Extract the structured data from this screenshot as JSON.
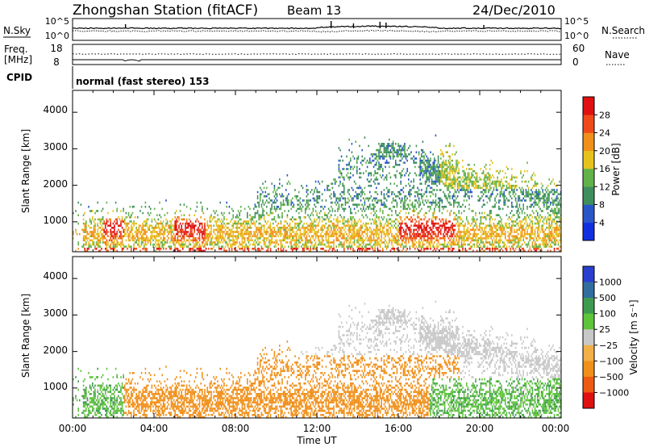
{
  "header": {
    "title": "Zhongshan Station (fitACF)",
    "beam": "Beam 13",
    "date": "24/Dec/2010"
  },
  "strips": {
    "nsky_label": "N.Sky",
    "nsearch_label": "N.Search",
    "count_ticks": [
      "10^5",
      "10^0"
    ],
    "freq_label_line1": "Freq.",
    "freq_label_line2": "[MHz]",
    "freq_ticks": [
      "18",
      "8"
    ],
    "nave_label": "Nave",
    "nave_ticks": [
      "60",
      "0"
    ],
    "cpid_label": "CPID",
    "cpid_text": "normal (fast stereo) 153"
  },
  "chart_data": [
    {
      "type": "heatmap",
      "name": "power",
      "ylabel": "Slant Range [km]",
      "ylim": [
        180,
        4600
      ],
      "yticks": [
        "1000",
        "2000",
        "3000",
        "4000"
      ],
      "xlim": [
        0,
        24
      ],
      "xticks": [
        "00:00",
        "04:00",
        "08:00",
        "12:00",
        "16:00",
        "20:00",
        "00:00"
      ],
      "colorbar_label": "Power [dB]",
      "colorbar_ticks": [
        "4",
        "8",
        "12",
        "16",
        "20",
        "24",
        "28"
      ],
      "colorbar_colors": [
        "#1030e0",
        "#2a57c8",
        "#3f8f5e",
        "#62b24a",
        "#e6c21e",
        "#f0901a",
        "#ef4a1a",
        "#e01010"
      ]
    },
    {
      "type": "heatmap",
      "name": "velocity",
      "ylabel": "Slant Range [km]",
      "ylim": [
        180,
        4600
      ],
      "yticks": [
        "1000",
        "2000",
        "3000",
        "4000"
      ],
      "xlim": [
        0,
        24
      ],
      "xticks": [
        "00:00",
        "04:00",
        "08:00",
        "12:00",
        "16:00",
        "20:00",
        "00:00"
      ],
      "xlabel": "Time UT",
      "colorbar_label": "Velocity [m s⁻¹]",
      "colorbar_ticks": [
        "1000",
        "500",
        "100",
        "25",
        "−25",
        "−100",
        "−500",
        "−1000"
      ],
      "colorbar_colors": [
        "#2a3fd0",
        "#2f6e9e",
        "#3e9a4e",
        "#5ec43a",
        "#c8c8c8",
        "#f2b048",
        "#f0901a",
        "#ef5a12",
        "#e01010"
      ]
    }
  ]
}
